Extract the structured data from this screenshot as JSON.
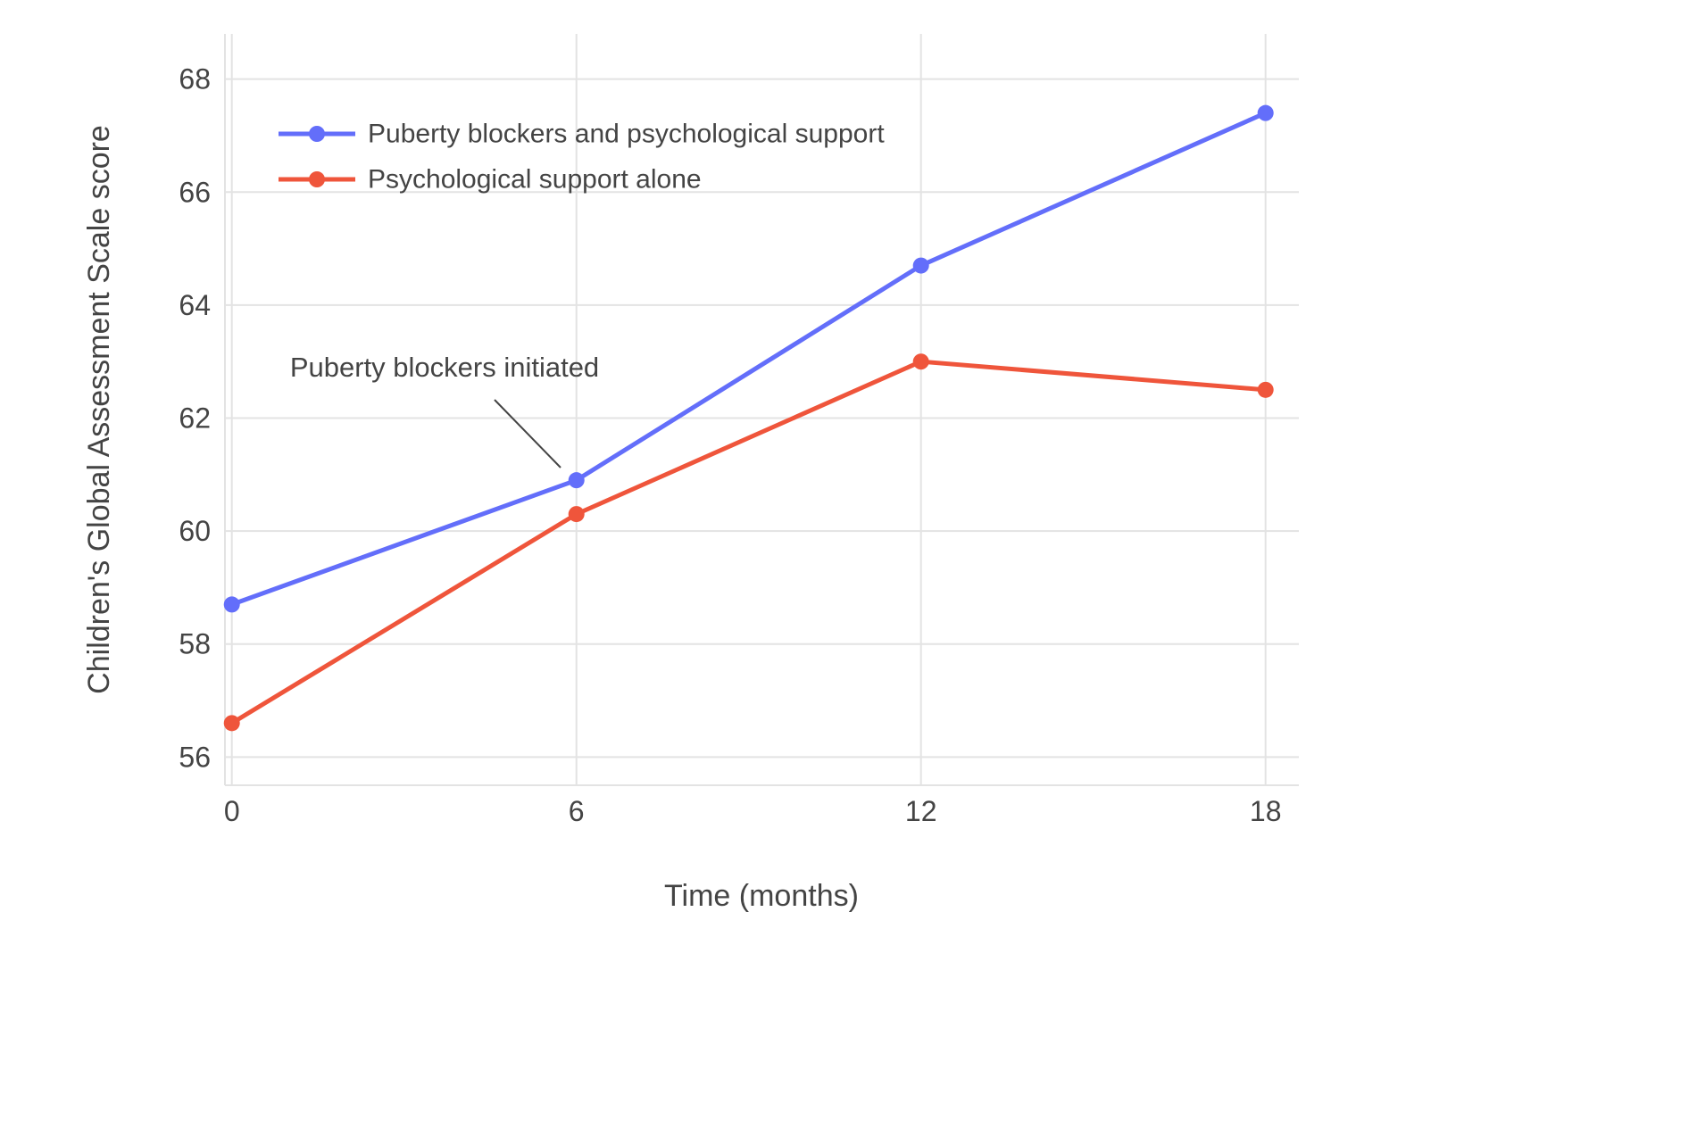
{
  "chart_data": {
    "type": "line",
    "title": "",
    "xlabel": "Time (months)",
    "ylabel": "Children's Global Assessment Scale score",
    "x": [
      0,
      6,
      12,
      18
    ],
    "xticks": [
      0,
      6,
      12,
      18
    ],
    "yticks": [
      56,
      58,
      60,
      62,
      64,
      66,
      68
    ],
    "xlim": [
      -0.12,
      18.58
    ],
    "ylim": [
      55.5,
      68.8
    ],
    "grid": true,
    "legend_position": "top-left-inside",
    "series": [
      {
        "name": "Puberty blockers and psychological support",
        "color": "#636EFA",
        "values": [
          58.7,
          60.9,
          64.7,
          67.4
        ]
      },
      {
        "name": "Psychological support alone",
        "color": "#EF553B",
        "values": [
          56.6,
          60.3,
          63.0,
          62.5
        ]
      }
    ],
    "annotation": {
      "text": "Puberty blockers initiated",
      "target": {
        "x": 6,
        "y": 60.9
      }
    },
    "colors": {
      "grid": "#E3E3E3",
      "text": "#444444",
      "annotation_line": "#444444",
      "background": "#FFFFFF"
    }
  }
}
